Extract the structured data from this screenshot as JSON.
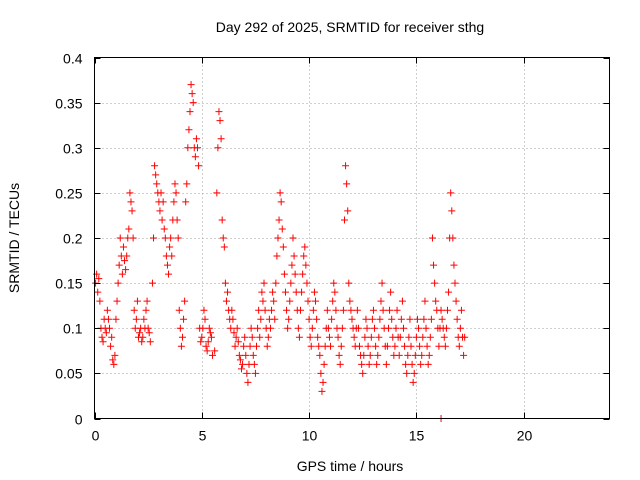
{
  "chart_data": {
    "type": "scatter",
    "title": "Day 292 of 2025, SRMTID for receiver sthg",
    "xlabel": "GPS time / hours",
    "ylabel": "SRMTID / TECUs",
    "xlim": [
      0,
      24
    ],
    "ylim": [
      0,
      0.4
    ],
    "x_ticks": [
      0,
      5,
      10,
      15,
      20
    ],
    "y_ticks": [
      0,
      0.05,
      0.1,
      0.15,
      0.2,
      0.25,
      0.3,
      0.35,
      0.4
    ],
    "x_tick_labels": [
      "0",
      "5",
      "10",
      "15",
      "20"
    ],
    "y_tick_labels": [
      "0",
      "0.05",
      "0.1",
      "0.15",
      "0.2",
      "0.25",
      "0.3",
      "0.35",
      "0.4"
    ],
    "grid": true,
    "marker": "plus",
    "color": "#ff0000",
    "points": [
      [
        0.05,
        0.15
      ],
      [
        0.1,
        0.16
      ],
      [
        0.15,
        0.14
      ],
      [
        0.2,
        0.155
      ],
      [
        0.25,
        0.13
      ],
      [
        0.3,
        0.1
      ],
      [
        0.35,
        0.09
      ],
      [
        0.4,
        0.085
      ],
      [
        0.45,
        0.11
      ],
      [
        0.5,
        0.1
      ],
      [
        0.55,
        0.095
      ],
      [
        0.6,
        0.12
      ],
      [
        0.65,
        0.11
      ],
      [
        0.7,
        0.1
      ],
      [
        0.75,
        0.08
      ],
      [
        0.8,
        0.09
      ],
      [
        0.85,
        0.065
      ],
      [
        0.9,
        0.06
      ],
      [
        0.95,
        0.07
      ],
      [
        1.0,
        0.11
      ],
      [
        1.05,
        0.13
      ],
      [
        1.1,
        0.15
      ],
      [
        1.15,
        0.17
      ],
      [
        1.2,
        0.2
      ],
      [
        1.25,
        0.18
      ],
      [
        1.3,
        0.16
      ],
      [
        1.35,
        0.19
      ],
      [
        1.4,
        0.175
      ],
      [
        1.45,
        0.165
      ],
      [
        1.5,
        0.18
      ],
      [
        1.55,
        0.2
      ],
      [
        1.6,
        0.21
      ],
      [
        1.65,
        0.25
      ],
      [
        1.7,
        0.24
      ],
      [
        1.75,
        0.23
      ],
      [
        1.8,
        0.2
      ],
      [
        1.85,
        0.12
      ],
      [
        1.9,
        0.1
      ],
      [
        1.95,
        0.11
      ],
      [
        2.0,
        0.13
      ],
      [
        2.05,
        0.09
      ],
      [
        2.1,
        0.095
      ],
      [
        2.15,
        0.1
      ],
      [
        2.2,
        0.085
      ],
      [
        2.25,
        0.09
      ],
      [
        2.3,
        0.11
      ],
      [
        2.35,
        0.1
      ],
      [
        2.4,
        0.12
      ],
      [
        2.45,
        0.13
      ],
      [
        2.5,
        0.1
      ],
      [
        2.55,
        0.095
      ],
      [
        2.6,
        0.085
      ],
      [
        2.7,
        0.15
      ],
      [
        2.75,
        0.2
      ],
      [
        2.8,
        0.28
      ],
      [
        2.85,
        0.27
      ],
      [
        2.9,
        0.26
      ],
      [
        2.95,
        0.25
      ],
      [
        3.0,
        0.24
      ],
      [
        3.05,
        0.23
      ],
      [
        3.1,
        0.25
      ],
      [
        3.15,
        0.22
      ],
      [
        3.2,
        0.24
      ],
      [
        3.25,
        0.21
      ],
      [
        3.3,
        0.2
      ],
      [
        3.35,
        0.18
      ],
      [
        3.4,
        0.17
      ],
      [
        3.45,
        0.16
      ],
      [
        3.5,
        0.19
      ],
      [
        3.55,
        0.2
      ],
      [
        3.6,
        0.18
      ],
      [
        3.65,
        0.22
      ],
      [
        3.7,
        0.24
      ],
      [
        3.75,
        0.26
      ],
      [
        3.8,
        0.25
      ],
      [
        3.85,
        0.22
      ],
      [
        3.9,
        0.2
      ],
      [
        3.95,
        0.12
      ],
      [
        4.0,
        0.1
      ],
      [
        4.05,
        0.08
      ],
      [
        4.1,
        0.09
      ],
      [
        4.15,
        0.11
      ],
      [
        4.2,
        0.13
      ],
      [
        4.25,
        0.24
      ],
      [
        4.3,
        0.26
      ],
      [
        4.35,
        0.3
      ],
      [
        4.4,
        0.32
      ],
      [
        4.45,
        0.34
      ],
      [
        4.5,
        0.37
      ],
      [
        4.55,
        0.36
      ],
      [
        4.6,
        0.35
      ],
      [
        4.65,
        0.3
      ],
      [
        4.7,
        0.29
      ],
      [
        4.75,
        0.31
      ],
      [
        4.8,
        0.3
      ],
      [
        4.85,
        0.28
      ],
      [
        4.9,
        0.1
      ],
      [
        4.95,
        0.085
      ],
      [
        5.0,
        0.09
      ],
      [
        5.05,
        0.1
      ],
      [
        5.1,
        0.12
      ],
      [
        5.15,
        0.11
      ],
      [
        5.2,
        0.08
      ],
      [
        5.25,
        0.075
      ],
      [
        5.3,
        0.085
      ],
      [
        5.35,
        0.1
      ],
      [
        5.4,
        0.095
      ],
      [
        5.45,
        0.09
      ],
      [
        5.5,
        0.07
      ],
      [
        5.6,
        0.075
      ],
      [
        5.7,
        0.25
      ],
      [
        5.75,
        0.3
      ],
      [
        5.8,
        0.34
      ],
      [
        5.85,
        0.33
      ],
      [
        5.9,
        0.31
      ],
      [
        5.95,
        0.22
      ],
      [
        6.0,
        0.2
      ],
      [
        6.05,
        0.19
      ],
      [
        6.1,
        0.15
      ],
      [
        6.15,
        0.13
      ],
      [
        6.2,
        0.14
      ],
      [
        6.25,
        0.12
      ],
      [
        6.3,
        0.11
      ],
      [
        6.35,
        0.1
      ],
      [
        6.4,
        0.12
      ],
      [
        6.45,
        0.11
      ],
      [
        6.5,
        0.095
      ],
      [
        6.55,
        0.08
      ],
      [
        6.6,
        0.09
      ],
      [
        6.65,
        0.1
      ],
      [
        6.7,
        0.085
      ],
      [
        6.75,
        0.07
      ],
      [
        6.8,
        0.065
      ],
      [
        6.85,
        0.055
      ],
      [
        6.9,
        0.06
      ],
      [
        6.95,
        0.08
      ],
      [
        7.0,
        0.09
      ],
      [
        7.05,
        0.07
      ],
      [
        7.1,
        0.05
      ],
      [
        7.15,
        0.04
      ],
      [
        7.2,
        0.06
      ],
      [
        7.25,
        0.08
      ],
      [
        7.3,
        0.1
      ],
      [
        7.35,
        0.09
      ],
      [
        7.4,
        0.07
      ],
      [
        7.45,
        0.06
      ],
      [
        7.5,
        0.05
      ],
      [
        7.55,
        0.08
      ],
      [
        7.6,
        0.1
      ],
      [
        7.65,
        0.12
      ],
      [
        7.7,
        0.09
      ],
      [
        7.75,
        0.11
      ],
      [
        7.8,
        0.14
      ],
      [
        7.85,
        0.13
      ],
      [
        7.9,
        0.15
      ],
      [
        7.95,
        0.12
      ],
      [
        8.0,
        0.1
      ],
      [
        8.05,
        0.08
      ],
      [
        8.1,
        0.09
      ],
      [
        8.15,
        0.11
      ],
      [
        8.2,
        0.1
      ],
      [
        8.25,
        0.12
      ],
      [
        8.3,
        0.14
      ],
      [
        8.35,
        0.13
      ],
      [
        8.4,
        0.11
      ],
      [
        8.45,
        0.15
      ],
      [
        8.5,
        0.18
      ],
      [
        8.55,
        0.2
      ],
      [
        8.6,
        0.22
      ],
      [
        8.65,
        0.25
      ],
      [
        8.7,
        0.24
      ],
      [
        8.75,
        0.21
      ],
      [
        8.8,
        0.19
      ],
      [
        8.85,
        0.16
      ],
      [
        8.9,
        0.14
      ],
      [
        8.95,
        0.12
      ],
      [
        9.0,
        0.1
      ],
      [
        9.05,
        0.11
      ],
      [
        9.1,
        0.13
      ],
      [
        9.15,
        0.15
      ],
      [
        9.2,
        0.17
      ],
      [
        9.25,
        0.2
      ],
      [
        9.3,
        0.18
      ],
      [
        9.35,
        0.16
      ],
      [
        9.4,
        0.14
      ],
      [
        9.45,
        0.12
      ],
      [
        9.5,
        0.1
      ],
      [
        9.55,
        0.09
      ],
      [
        9.6,
        0.12
      ],
      [
        9.65,
        0.14
      ],
      [
        9.7,
        0.16
      ],
      [
        9.75,
        0.18
      ],
      [
        9.8,
        0.19
      ],
      [
        9.85,
        0.17
      ],
      [
        9.9,
        0.15
      ],
      [
        9.95,
        0.13
      ],
      [
        10.0,
        0.11
      ],
      [
        10.05,
        0.09
      ],
      [
        10.1,
        0.08
      ],
      [
        10.15,
        0.1
      ],
      [
        10.2,
        0.12
      ],
      [
        10.25,
        0.14
      ],
      [
        10.3,
        0.13
      ],
      [
        10.35,
        0.11
      ],
      [
        10.4,
        0.09
      ],
      [
        10.45,
        0.08
      ],
      [
        10.5,
        0.07
      ],
      [
        10.55,
        0.05
      ],
      [
        10.6,
        0.03
      ],
      [
        10.65,
        0.04
      ],
      [
        10.7,
        0.06
      ],
      [
        10.75,
        0.08
      ],
      [
        10.8,
        0.1
      ],
      [
        10.85,
        0.12
      ],
      [
        10.9,
        0.1
      ],
      [
        10.95,
        0.09
      ],
      [
        11.0,
        0.08
      ],
      [
        11.05,
        0.11
      ],
      [
        11.1,
        0.13
      ],
      [
        11.15,
        0.15
      ],
      [
        11.2,
        0.14
      ],
      [
        11.25,
        0.12
      ],
      [
        11.3,
        0.1
      ],
      [
        11.35,
        0.09
      ],
      [
        11.4,
        0.07
      ],
      [
        11.45,
        0.06
      ],
      [
        11.5,
        0.08
      ],
      [
        11.55,
        0.1
      ],
      [
        11.6,
        0.12
      ],
      [
        11.65,
        0.22
      ],
      [
        11.7,
        0.28
      ],
      [
        11.75,
        0.26
      ],
      [
        11.8,
        0.23
      ],
      [
        11.85,
        0.15
      ],
      [
        11.9,
        0.13
      ],
      [
        11.95,
        0.12
      ],
      [
        12.0,
        0.11
      ],
      [
        12.05,
        0.1
      ],
      [
        12.1,
        0.09
      ],
      [
        12.15,
        0.08
      ],
      [
        12.2,
        0.1
      ],
      [
        12.25,
        0.12
      ],
      [
        12.3,
        0.1
      ],
      [
        12.35,
        0.08
      ],
      [
        12.4,
        0.07
      ],
      [
        12.45,
        0.06
      ],
      [
        12.5,
        0.05
      ],
      [
        12.55,
        0.07
      ],
      [
        12.6,
        0.09
      ],
      [
        12.65,
        0.11
      ],
      [
        12.7,
        0.1
      ],
      [
        12.75,
        0.08
      ],
      [
        12.8,
        0.06
      ],
      [
        12.85,
        0.07
      ],
      [
        12.9,
        0.09
      ],
      [
        12.95,
        0.11
      ],
      [
        13.0,
        0.12
      ],
      [
        13.05,
        0.1
      ],
      [
        13.1,
        0.08
      ],
      [
        13.15,
        0.06
      ],
      [
        13.2,
        0.07
      ],
      [
        13.25,
        0.09
      ],
      [
        13.3,
        0.11
      ],
      [
        13.35,
        0.13
      ],
      [
        13.4,
        0.15
      ],
      [
        13.45,
        0.12
      ],
      [
        13.5,
        0.1
      ],
      [
        13.55,
        0.08
      ],
      [
        13.6,
        0.06
      ],
      [
        13.65,
        0.08
      ],
      [
        13.7,
        0.1
      ],
      [
        13.75,
        0.12
      ],
      [
        13.8,
        0.14
      ],
      [
        13.85,
        0.11
      ],
      [
        13.9,
        0.09
      ],
      [
        13.95,
        0.07
      ],
      [
        14.0,
        0.08
      ],
      [
        14.05,
        0.1
      ],
      [
        14.1,
        0.12
      ],
      [
        14.15,
        0.09
      ],
      [
        14.2,
        0.07
      ],
      [
        14.25,
        0.09
      ],
      [
        14.3,
        0.11
      ],
      [
        14.35,
        0.13
      ],
      [
        14.4,
        0.1
      ],
      [
        14.45,
        0.08
      ],
      [
        14.5,
        0.06
      ],
      [
        14.55,
        0.05
      ],
      [
        14.6,
        0.07
      ],
      [
        14.65,
        0.09
      ],
      [
        14.7,
        0.11
      ],
      [
        14.75,
        0.08
      ],
      [
        14.8,
        0.06
      ],
      [
        14.85,
        0.04
      ],
      [
        14.9,
        0.05
      ],
      [
        14.95,
        0.07
      ],
      [
        15.0,
        0.09
      ],
      [
        15.05,
        0.11
      ],
      [
        15.1,
        0.1
      ],
      [
        15.15,
        0.08
      ],
      [
        15.2,
        0.06
      ],
      [
        15.25,
        0.07
      ],
      [
        15.3,
        0.09
      ],
      [
        15.35,
        0.11
      ],
      [
        15.4,
        0.13
      ],
      [
        15.45,
        0.1
      ],
      [
        15.5,
        0.08
      ],
      [
        15.55,
        0.06
      ],
      [
        15.6,
        0.07
      ],
      [
        15.65,
        0.09
      ],
      [
        15.7,
        0.11
      ],
      [
        15.75,
        0.2
      ],
      [
        15.8,
        0.17
      ],
      [
        15.85,
        0.15
      ],
      [
        15.9,
        0.13
      ],
      [
        15.95,
        0.12
      ],
      [
        16.0,
        0.1
      ],
      [
        16.05,
        0.08
      ],
      [
        16.1,
        0.1
      ],
      [
        16.15,
        0.12
      ],
      [
        16.2,
        0.11
      ],
      [
        16.25,
        0.1
      ],
      [
        16.3,
        0.09
      ],
      [
        16.35,
        0.08
      ],
      [
        16.4,
        0.1
      ],
      [
        16.45,
        0.12
      ],
      [
        16.5,
        0.14
      ],
      [
        16.55,
        0.2
      ],
      [
        16.6,
        0.25
      ],
      [
        16.65,
        0.23
      ],
      [
        16.7,
        0.2
      ],
      [
        16.75,
        0.17
      ],
      [
        16.8,
        0.15
      ],
      [
        16.85,
        0.13
      ],
      [
        16.9,
        0.11
      ],
      [
        16.95,
        0.09
      ],
      [
        17.0,
        0.08
      ],
      [
        17.05,
        0.1
      ],
      [
        17.1,
        0.12
      ],
      [
        17.15,
        0.09
      ],
      [
        17.2,
        0.07
      ],
      [
        17.25,
        0.09
      ],
      [
        16.15,
        0.0
      ]
    ]
  }
}
